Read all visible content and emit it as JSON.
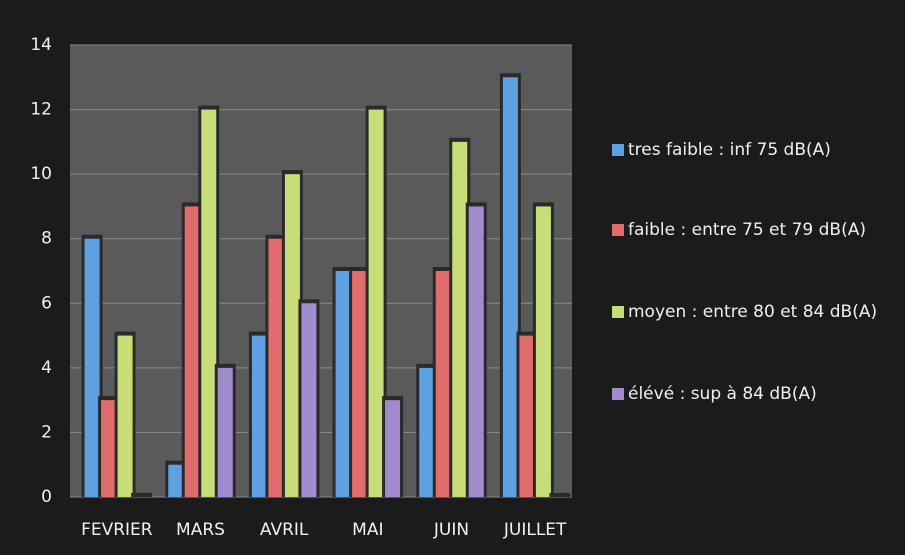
{
  "chart_data": {
    "type": "bar",
    "categories": [
      "FEVRIER",
      "MARS",
      "AVRIL",
      "MAI",
      "JUIN",
      "JUILLET"
    ],
    "series": [
      {
        "name": "tres faible : inf 75 dB(A)",
        "color": "#5fa0e0",
        "values": [
          8,
          1,
          5,
          7,
          4,
          13
        ]
      },
      {
        "name": "faible : entre 75 et 79 dB(A)",
        "color": "#e06c6c",
        "values": [
          3,
          9,
          8,
          7,
          7,
          5
        ]
      },
      {
        "name": "moyen : entre 80 et 84 dB(A)",
        "color": "#c8dc78",
        "values": [
          5,
          12,
          10,
          12,
          11,
          9
        ]
      },
      {
        "name": "élévé : sup à 84 dB(A)",
        "color": "#a08ccc",
        "values": [
          0,
          4,
          6,
          3,
          9,
          0
        ]
      }
    ],
    "ylim": [
      0,
      14
    ],
    "yticks": [
      0,
      2,
      4,
      6,
      8,
      10,
      12,
      14
    ],
    "grid": true
  }
}
